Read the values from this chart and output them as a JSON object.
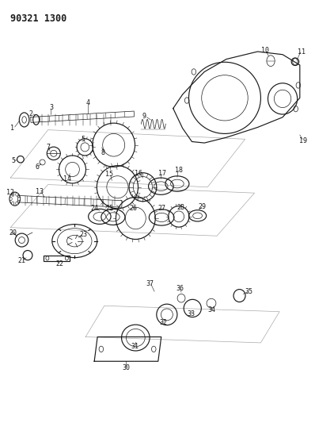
{
  "title": "90321 1300",
  "bg_color": "#ffffff",
  "line_color": "#1a1a1a",
  "label_fontsize": 6.0,
  "title_fontsize": 8.5,
  "lw1": 0.5,
  "lw2": 0.85,
  "lw3": 1.1
}
